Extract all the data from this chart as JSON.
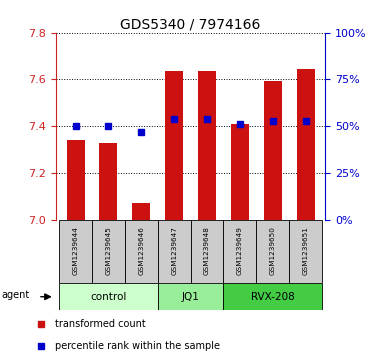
{
  "title": "GDS5340 / 7974166",
  "samples": [
    "GSM1239644",
    "GSM1239645",
    "GSM1239646",
    "GSM1239647",
    "GSM1239648",
    "GSM1239649",
    "GSM1239650",
    "GSM1239651"
  ],
  "red_values": [
    7.34,
    7.33,
    7.07,
    7.635,
    7.635,
    7.41,
    7.595,
    7.645
  ],
  "blue_values": [
    7.4,
    7.4,
    7.375,
    7.43,
    7.43,
    7.41,
    7.42,
    7.42
  ],
  "y_min": 7.0,
  "y_max": 7.8,
  "y_ticks_left": [
    7.0,
    7.2,
    7.4,
    7.6,
    7.8
  ],
  "y_ticks_right_pct": [
    0,
    25,
    50,
    75,
    100
  ],
  "groups": [
    {
      "label": "control",
      "start": 0,
      "end": 3,
      "color": "#ccffcc"
    },
    {
      "label": "JQ1",
      "start": 3,
      "end": 5,
      "color": "#99ee99"
    },
    {
      "label": "RVX-208",
      "start": 5,
      "end": 8,
      "color": "#44cc44"
    }
  ],
  "bar_color": "#cc1111",
  "marker_color": "#0000cc",
  "bar_width": 0.55,
  "sample_box_color": "#cccccc",
  "plot_bg_color": "#ffffff",
  "legend_items": [
    {
      "label": "transformed count",
      "color": "#cc1111"
    },
    {
      "label": "percentile rank within the sample",
      "color": "#0000cc"
    }
  ],
  "agent_label": "agent"
}
